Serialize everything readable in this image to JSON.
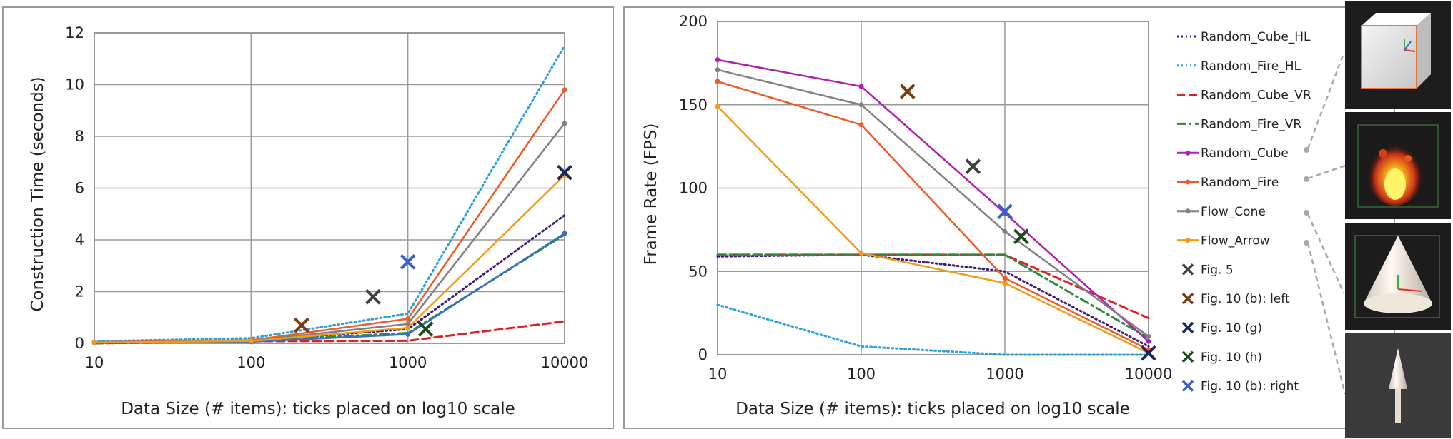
{
  "chart_data": [
    {
      "type": "line",
      "xscale": "log10",
      "x": [
        10,
        100,
        1000,
        10000
      ],
      "xticks": [
        "10",
        "100",
        "1000",
        "10000"
      ],
      "yticks": [
        "0",
        "2",
        "4",
        "6",
        "8",
        "10",
        "12"
      ],
      "ylim": [
        0,
        12
      ],
      "xlabel": "Data Size (# items): ticks placed on log10 scale",
      "ylabel": "Construction Time (seconds)",
      "grid": true,
      "series": [
        {
          "name": "Random_Cube_HL",
          "values": [
            0.05,
            0.1,
            0.55,
            4.95
          ],
          "color": "#3b1a78",
          "dash": "dotted"
        },
        {
          "name": "Random_Fire_HL",
          "values": [
            0.08,
            0.2,
            1.15,
            11.5
          ],
          "color": "#2a9fd8",
          "dash": "dotted"
        },
        {
          "name": "Random_Cube_VR",
          "values": [
            0.0,
            0.08,
            0.1,
            0.85
          ],
          "color": "#e02020",
          "dash": "dashed"
        },
        {
          "name": "Random_Fire_VR",
          "values": [
            0.0,
            0.1,
            0.4,
            4.2
          ],
          "color": "#2e8b3e",
          "dash": "dashdot"
        },
        {
          "name": "Random_Cube",
          "values": [
            0.02,
            0.06,
            0.35,
            4.25
          ],
          "color": "#3a6fc4",
          "dash": "solid"
        },
        {
          "name": "Random_Fire",
          "values": [
            0.05,
            0.12,
            0.95,
            9.8
          ],
          "color": "#f05a28",
          "dash": "solid"
        },
        {
          "name": "Flow_Cone",
          "values": [
            0.04,
            0.1,
            0.75,
            8.5
          ],
          "color": "#808080",
          "dash": "solid"
        },
        {
          "name": "Flow_Arrow",
          "values": [
            0.03,
            0.09,
            0.6,
            6.5
          ],
          "color": "#f49a1a",
          "dash": "solid"
        }
      ],
      "markers": [
        {
          "name": "Fig. 5",
          "x": 600,
          "y": 1.8,
          "color": "#404040"
        },
        {
          "name": "Fig. 10 (b): left",
          "x": 210,
          "y": 0.7,
          "color": "#7a3a10"
        },
        {
          "name": "Fig. 10 (g)",
          "x": 10000,
          "y": 6.6,
          "color": "#1a2a5a"
        },
        {
          "name": "Fig. 10 (h)",
          "x": 1300,
          "y": 0.55,
          "color": "#1c4a1c"
        },
        {
          "name": "Fig. 10 (b): right",
          "x": 1000,
          "y": 3.15,
          "color": "#3a5fc8"
        }
      ]
    },
    {
      "type": "line",
      "xscale": "log10",
      "x": [
        10,
        100,
        1000,
        10000
      ],
      "xticks": [
        "10",
        "100",
        "1000",
        "10000"
      ],
      "yticks": [
        "0",
        "50",
        "100",
        "150",
        "200"
      ],
      "ylim": [
        0,
        200
      ],
      "xlabel": "Data Size (# items): ticks placed on log10 scale",
      "ylabel": "Frame Rate (FPS)",
      "grid": true,
      "legend_position": "right",
      "series": [
        {
          "name": "Random_Cube_HL",
          "values": [
            59,
            60,
            50,
            5
          ],
          "color": "#3b1a78",
          "dash": "dotted"
        },
        {
          "name": "Random_Fire_HL",
          "values": [
            30,
            5,
            0,
            0
          ],
          "color": "#2a9fd8",
          "dash": "dotted"
        },
        {
          "name": "Random_Cube_VR",
          "values": [
            60,
            60,
            60,
            22
          ],
          "color": "#e02020",
          "dash": "dashed"
        },
        {
          "name": "Random_Fire_VR",
          "values": [
            60,
            60,
            60,
            10
          ],
          "color": "#2e8b3e",
          "dash": "dashdot"
        },
        {
          "name": "Random_Cube",
          "values": [
            177,
            161,
            85,
            8
          ],
          "color": "#b020b0",
          "dash": "solid"
        },
        {
          "name": "Random_Fire",
          "values": [
            164,
            138,
            46,
            3
          ],
          "color": "#f05a28",
          "dash": "solid"
        },
        {
          "name": "Flow_Cone",
          "values": [
            171,
            150,
            74,
            11
          ],
          "color": "#808080",
          "dash": "solid"
        },
        {
          "name": "Flow_Arrow",
          "values": [
            149,
            61,
            43,
            1
          ],
          "color": "#f49a1a",
          "dash": "solid"
        }
      ],
      "markers": [
        {
          "name": "Fig. 5",
          "x": 600,
          "y": 113,
          "color": "#404040"
        },
        {
          "name": "Fig. 10 (b): left",
          "x": 210,
          "y": 158,
          "color": "#7a3a10"
        },
        {
          "name": "Fig. 10 (g)",
          "x": 10000,
          "y": 1,
          "color": "#1a2a5a"
        },
        {
          "name": "Fig. 10 (h)",
          "x": 1300,
          "y": 71,
          "color": "#1c4a1c"
        },
        {
          "name": "Fig. 10 (b): right",
          "x": 1000,
          "y": 86,
          "color": "#3a5fc8"
        }
      ]
    }
  ],
  "thumbnails": [
    {
      "name": "cube-thumbnail",
      "links_to": "Random_Cube"
    },
    {
      "name": "fire-thumbnail",
      "links_to": "Random_Fire"
    },
    {
      "name": "cone-thumbnail",
      "links_to": "Flow_Cone"
    },
    {
      "name": "arrow-thumbnail",
      "links_to": "Flow_Arrow"
    }
  ]
}
